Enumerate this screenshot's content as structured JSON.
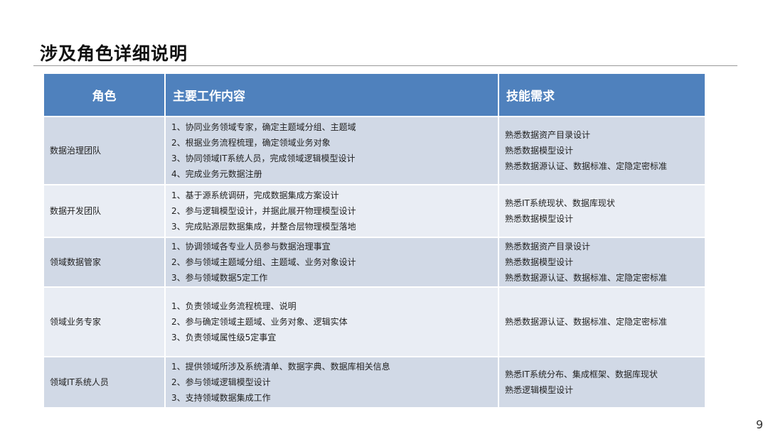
{
  "title": "涉及角色详细说明",
  "table": {
    "headers": [
      "角色",
      "主要工作内容",
      "技能需求"
    ],
    "rows": [
      {
        "role": "数据治理团队",
        "work": [
          "1、协同业务领域专家，确定主题域分组、主题域",
          "2、根据业务流程梳理，确定领域业务对象",
          "3、协同领域IT系统人员，完成领域逻辑模型设计",
          "4、完成业务元数据注册"
        ],
        "skills": [
          "熟悉数据资产目录设计",
          "熟悉数据模型设计",
          "熟悉数据源认证、数据标准、定隐定密标准"
        ]
      },
      {
        "role": "数据开发团队",
        "work": [
          "1、基于源系统调研，完成数据集成方案设计",
          "2、参与逻辑模型设计，并据此展开物理模型设计",
          "3、完成贴源层数据集成，并整合层物理模型落地"
        ],
        "skills": [
          "熟悉IT系统现状、数据库现状",
          "熟悉数据模型设计"
        ]
      },
      {
        "role": "领域数据管家",
        "work": [
          "1、协调领域各专业人员参与数据治理事宜",
          "2、参与领域主题域分组、主题域、业务对象设计",
          "3、参与领域数据5定工作"
        ],
        "skills": [
          "熟悉数据资产目录设计",
          "熟悉数据模型设计",
          "熟悉数据源认证、数据标准、定隐定密标准"
        ]
      },
      {
        "role": "领域业务专家",
        "work": [
          "1、负责领域业务流程梳理、说明",
          "2、参与确定领域主题域、业务对象、逻辑实体",
          "3、负责领域属性级5定事宜"
        ],
        "skills": [
          "熟悉数据源认证、数据标准、定隐定密标准"
        ]
      },
      {
        "role": "领域IT系统人员",
        "work": [
          "1、提供领域所涉及系统清单、数据字典、数据库相关信息",
          "2、参与领域逻辑模型设计",
          "3、支持领域数据集成工作"
        ],
        "skills": [
          "熟悉IT系统分布、集成框架、数据库现状",
          "熟悉逻辑模型设计"
        ]
      }
    ]
  },
  "page_number": "9",
  "colors": {
    "header": "#4f81bd",
    "row_dark": "#d1d9e6",
    "row_light": "#e9edf4"
  }
}
